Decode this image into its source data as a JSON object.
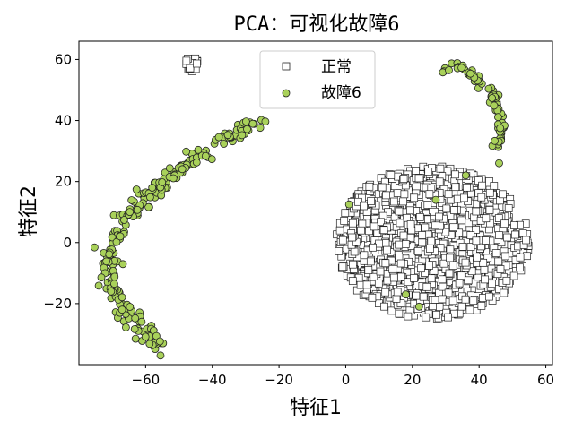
{
  "chart_data": {
    "type": "scatter",
    "title": "PCA：可视化故障6",
    "xlabel": "特征1",
    "ylabel": "特征2",
    "xlim": [
      -80,
      62
    ],
    "ylim": [
      -40,
      66
    ],
    "xticks": [
      -60,
      -40,
      -20,
      0,
      20,
      40,
      60
    ],
    "yticks": [
      -20,
      0,
      20,
      40,
      60
    ],
    "xtick_labels": [
      "−60",
      "−40",
      "−20",
      "0",
      "20",
      "40",
      "60"
    ],
    "ytick_labels": [
      "−20",
      "0",
      "20",
      "40",
      "60"
    ],
    "legend_position": "top-center",
    "series": [
      {
        "name": "正常",
        "marker": "square",
        "fill": "#ffffff",
        "edge": "#222222",
        "clusters": [
          {
            "shape": "ellipse",
            "center": [
              26,
              0
            ],
            "radius": [
              29,
              25
            ],
            "count": 1100
          },
          {
            "shape": "ellipse",
            "center": [
              -46.5,
              58.5
            ],
            "radius": [
              2.2,
              2.4
            ],
            "count": 20
          }
        ]
      },
      {
        "name": "故障6",
        "marker": "circle",
        "fill": "#a9d15a",
        "edge": "#222222",
        "curves": [
          {
            "path": [
              [
                -57,
                -34
              ],
              [
                -59,
                -28
              ],
              [
                -64,
                -25
              ],
              [
                -69,
                -18
              ],
              [
                -71,
                -10
              ],
              [
                -70,
                -2
              ],
              [
                -67,
                7
              ],
              [
                -60,
                15
              ],
              [
                -50,
                24
              ],
              [
                -40,
                32
              ],
              [
                -30,
                37
              ],
              [
                -24,
                38.5
              ]
            ],
            "count": 240,
            "spread": 1.3
          },
          {
            "path": [
              [
                30,
                57
              ],
              [
                34,
                58
              ],
              [
                40,
                54
              ],
              [
                44,
                48
              ],
              [
                46.5,
                42
              ],
              [
                47,
                36
              ],
              [
                45.5,
                31
              ]
            ],
            "count": 70,
            "spread": 0.8
          }
        ],
        "points": [
          [
            -63,
            -31.5
          ],
          [
            46,
            26
          ],
          [
            36,
            22
          ],
          [
            1,
            12.5
          ],
          [
            18,
            -17
          ],
          [
            22,
            -21
          ],
          [
            27,
            14
          ]
        ]
      }
    ]
  }
}
